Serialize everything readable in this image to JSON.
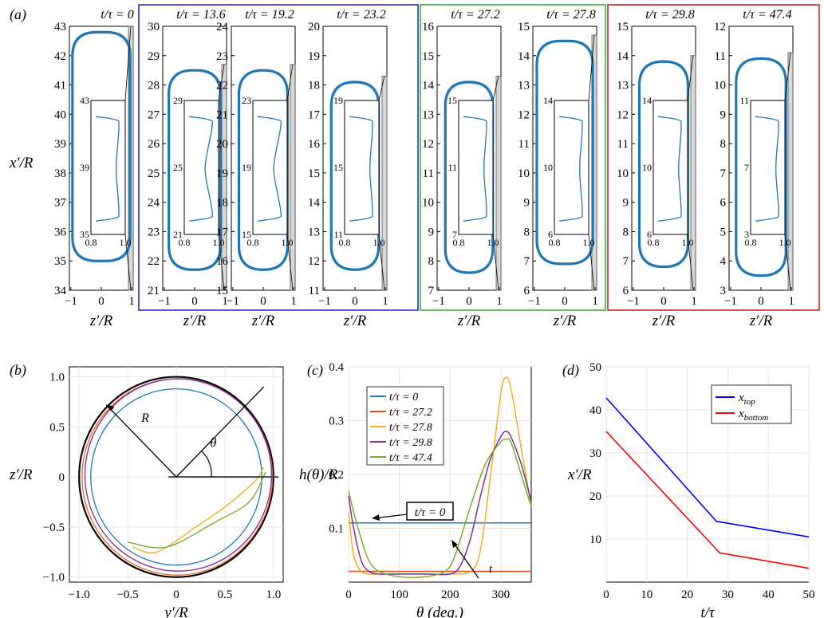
{
  "figure": {
    "panel_labels": [
      "(a)",
      "(b)",
      "(c)",
      "(d)"
    ],
    "group_colors": [
      "#1c1cb4",
      "#2fa82f",
      "#b81c1c"
    ],
    "droplet_color": "#1f77b4",
    "wall_color": "#d8d8d8"
  },
  "chart_data": [
    {
      "panel": "(a)",
      "type": "line",
      "ylabel": "x′/R",
      "xlabel": "z′/R",
      "x_ticks": [
        "−1",
        "0",
        "1"
      ],
      "inset_x_ticks": [
        "0.8",
        "1.0"
      ],
      "frames": [
        {
          "label": "t/τ = 0",
          "y_ticks": [
            43,
            42,
            41,
            40,
            39,
            38,
            37,
            36,
            35,
            34
          ],
          "top": 42.8,
          "bottom": 35.0,
          "max_width": 0.95,
          "inset_y_ticks": [
            43,
            39,
            35
          ]
        },
        {
          "label": "t/τ = 13.6",
          "y_ticks": [
            30,
            29,
            28,
            27,
            26,
            25,
            24,
            23,
            22,
            21
          ],
          "top": 28.5,
          "bottom": 21.7,
          "max_width": 0.85,
          "inset_y_ticks": [
            29,
            25,
            21
          ]
        },
        {
          "label": "t/τ = 19.2",
          "y_ticks": [
            24,
            23,
            22,
            21,
            20,
            19,
            18,
            17,
            16,
            15
          ],
          "top": 22.5,
          "bottom": 15.7,
          "max_width": 0.8,
          "inset_y_ticks": [
            23,
            19,
            15
          ]
        },
        {
          "label": "t/τ = 23.2",
          "y_ticks": [
            20,
            19,
            18,
            17,
            16,
            15,
            14,
            13,
            12,
            11
          ],
          "top": 18.1,
          "bottom": 11.7,
          "max_width": 0.78,
          "inset_y_ticks": [
            19,
            15,
            11
          ]
        },
        {
          "label": "t/τ = 27.2",
          "y_ticks": [
            16,
            15,
            14,
            13,
            12,
            11,
            10,
            9,
            8,
            7
          ],
          "top": 14.1,
          "bottom": 7.6,
          "max_width": 0.78,
          "inset_y_ticks": [
            15,
            11,
            7
          ]
        },
        {
          "label": "t/τ = 27.8",
          "y_ticks": [
            15,
            14,
            13,
            12,
            11,
            10,
            9,
            8,
            7,
            6
          ],
          "top": 14.5,
          "bottom": 6.9,
          "max_width": 0.92,
          "inset_y_ticks": [
            14,
            10,
            6
          ]
        },
        {
          "label": "t/τ = 29.8",
          "y_ticks": [
            15,
            14,
            13,
            12,
            11,
            10,
            9,
            8,
            7,
            6
          ],
          "top": 13.8,
          "bottom": 6.8,
          "max_width": 0.8,
          "inset_y_ticks": [
            14,
            10,
            6
          ]
        },
        {
          "label": "t/τ = 47.4",
          "y_ticks": [
            12,
            11,
            10,
            9,
            8,
            7,
            6,
            5,
            4,
            3
          ],
          "top": 10.9,
          "bottom": 3.5,
          "max_width": 0.82,
          "inset_y_ticks": [
            11,
            7,
            3
          ]
        }
      ]
    },
    {
      "panel": "(b)",
      "type": "line",
      "xlabel": "y′/R",
      "ylabel": "z′/R",
      "x_ticks": [
        "−1.0",
        "−0.5",
        "0",
        "0.5",
        "1.0"
      ],
      "y_ticks": [
        "1.0",
        "0.5",
        "0",
        "−0.5",
        "−1.0"
      ],
      "xlim": [
        -1.1,
        1.1
      ],
      "ylim": [
        -1.05,
        1.1
      ],
      "annotations": [
        "R",
        "θ"
      ],
      "series": [
        {
          "color": "#000000",
          "cx": 0,
          "cy": 0,
          "r": 1.0
        },
        {
          "color": "#e8641e",
          "cx": 0.01,
          "cy": 0.0,
          "r": 0.98
        },
        {
          "color": "#7b2e9a",
          "cx": 0.02,
          "cy": 0.02,
          "r": 0.96
        },
        {
          "color": "#1f77b4",
          "cx": 0.0,
          "cy": 0.0,
          "r": 0.88
        }
      ],
      "yellow_path": [
        [
          -0.45,
          -0.7
        ],
        [
          -0.2,
          -0.75
        ],
        [
          0.2,
          -0.5
        ],
        [
          0.5,
          -0.3
        ],
        [
          0.8,
          -0.05
        ],
        [
          0.9,
          0.1
        ]
      ],
      "green_path": [
        [
          -0.5,
          -0.65
        ],
        [
          -0.1,
          -0.7
        ],
        [
          0.4,
          -0.45
        ],
        [
          0.75,
          -0.25
        ],
        [
          0.92,
          0.05
        ]
      ]
    },
    {
      "panel": "(c)",
      "type": "line",
      "xlabel": "θ (deg.)",
      "ylabel": "h(θ)/R",
      "x_ticks": [
        0,
        100,
        200,
        300
      ],
      "y_ticks": [
        0.1,
        0.2,
        0.3,
        0.4
      ],
      "xlim": [
        0,
        360
      ],
      "ylim": [
        0,
        0.4
      ],
      "box_label": "t/τ = 0",
      "arrow_label": "t",
      "series": [
        {
          "name": "t/τ = 0",
          "color": "#1f77b4",
          "x": [
            0,
            60,
            120,
            180,
            240,
            300,
            360
          ],
          "y": [
            0.11,
            0.11,
            0.11,
            0.11,
            0.11,
            0.11,
            0.11
          ]
        },
        {
          "name": "t/τ = 27.2",
          "color": "#d95319",
          "x": [
            0,
            60,
            120,
            180,
            240,
            300,
            360
          ],
          "y": [
            0.02,
            0.02,
            0.02,
            0.02,
            0.02,
            0.02,
            0.02
          ]
        },
        {
          "name": "t/τ = 27.8",
          "color": "#edb120",
          "x": [
            0,
            10,
            25,
            40,
            60,
            100,
            150,
            200,
            240,
            260,
            280,
            300,
            310,
            320,
            340,
            360
          ],
          "y": [
            0.13,
            0.05,
            0.02,
            0.015,
            0.015,
            0.015,
            0.015,
            0.015,
            0.02,
            0.06,
            0.2,
            0.35,
            0.38,
            0.36,
            0.25,
            0.14
          ]
        },
        {
          "name": "t/τ = 29.8",
          "color": "#7e2f8e",
          "x": [
            0,
            10,
            25,
            40,
            60,
            100,
            150,
            200,
            220,
            240,
            260,
            280,
            300,
            310,
            320,
            340,
            360
          ],
          "y": [
            0.16,
            0.1,
            0.04,
            0.02,
            0.015,
            0.015,
            0.015,
            0.015,
            0.03,
            0.08,
            0.16,
            0.23,
            0.27,
            0.28,
            0.27,
            0.22,
            0.15
          ]
        },
        {
          "name": "t/τ = 47.4",
          "color": "#77ac30",
          "x": [
            0,
            10,
            25,
            40,
            60,
            100,
            150,
            190,
            210,
            240,
            270,
            300,
            310,
            320,
            340,
            360
          ],
          "y": [
            0.17,
            0.13,
            0.08,
            0.04,
            0.02,
            0.01,
            0.01,
            0.02,
            0.05,
            0.14,
            0.22,
            0.26,
            0.265,
            0.26,
            0.2,
            0.14
          ]
        }
      ]
    },
    {
      "panel": "(d)",
      "type": "line",
      "xlabel": "t/τ",
      "ylabel": "x′/R",
      "x_ticks": [
        0,
        10,
        20,
        30,
        40,
        50
      ],
      "y_ticks": [
        10,
        20,
        30,
        40,
        50
      ],
      "xlim": [
        0,
        50
      ],
      "ylim": [
        0,
        50
      ],
      "series": [
        {
          "name": "x_top",
          "color": "#0000ff",
          "x": [
            0,
            27.2,
            28,
            50
          ],
          "y": [
            42.8,
            14.1,
            14.0,
            10.5
          ]
        },
        {
          "name": "x_bottom",
          "color": "#ff0000",
          "x": [
            0,
            27.2,
            28,
            50
          ],
          "y": [
            35.0,
            7.6,
            6.8,
            3.2
          ]
        }
      ]
    }
  ]
}
